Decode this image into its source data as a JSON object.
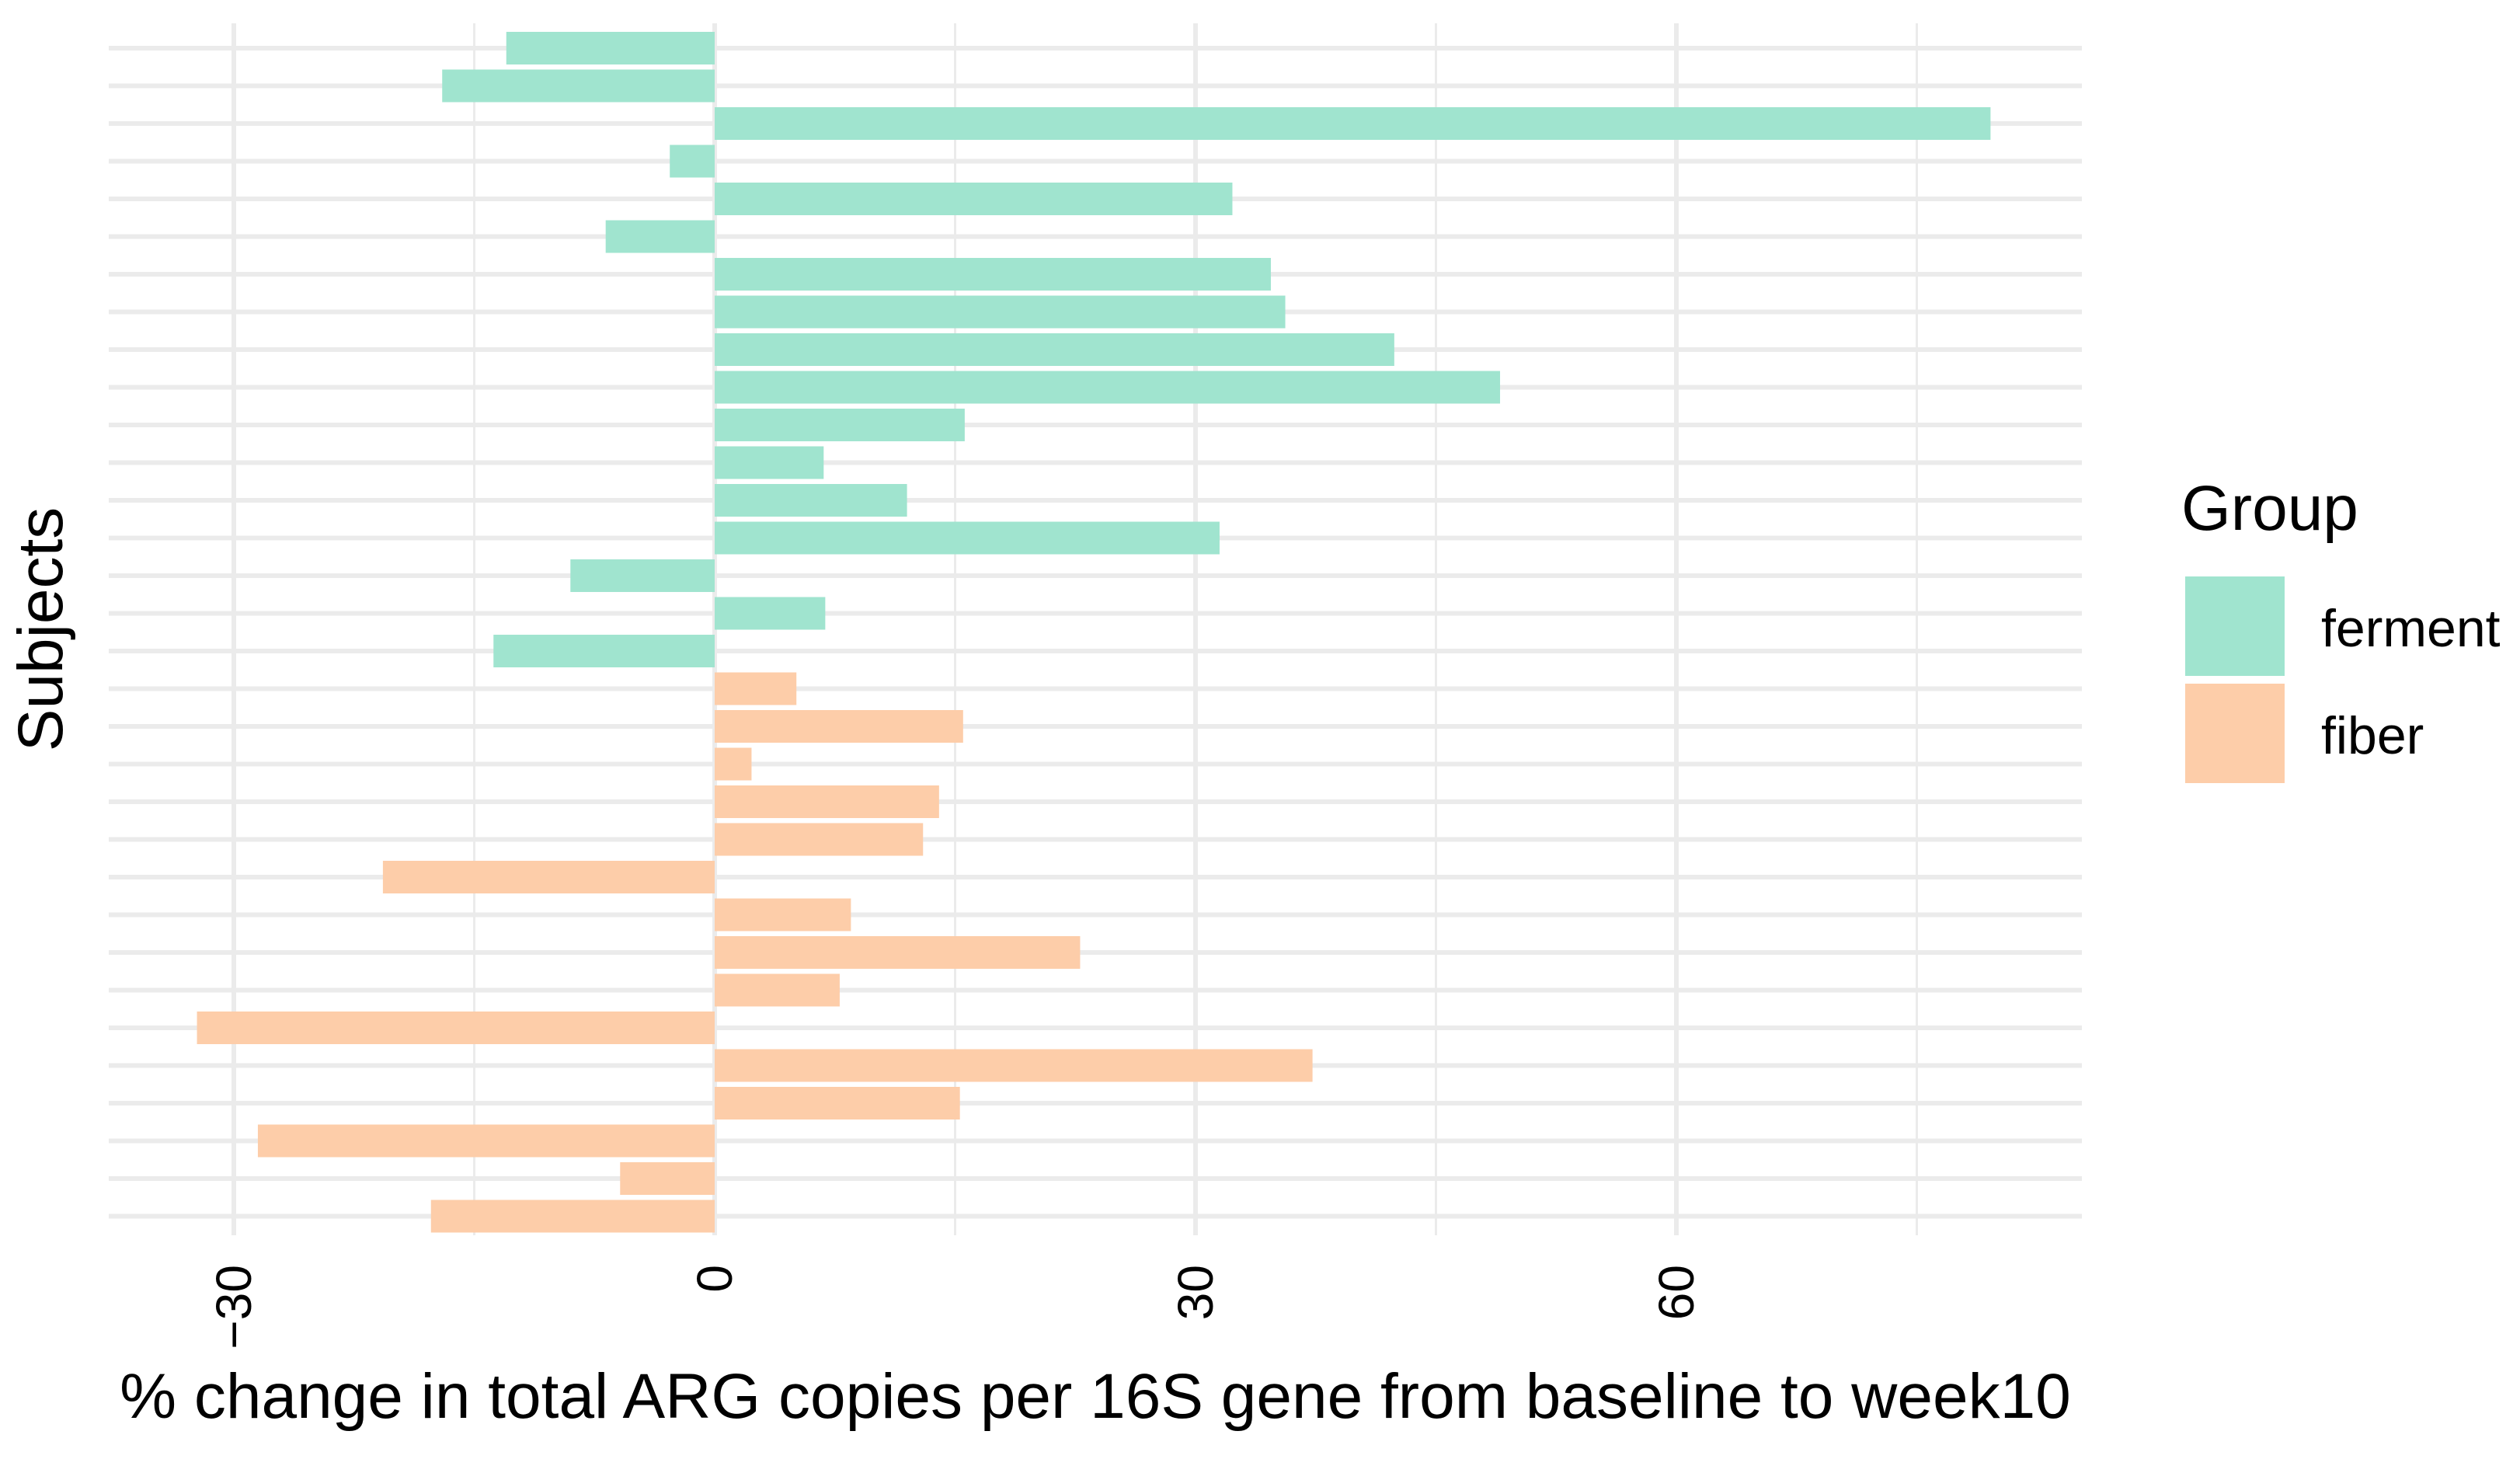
{
  "chart_data": {
    "type": "bar",
    "orientation": "horizontal",
    "title": "",
    "xlabel": "% change in total ARG copies per 16S gene from baseline to week10",
    "ylabel": "Subjects",
    "xlim": [
      -38,
      85
    ],
    "x_ticks": [
      -30,
      0,
      30,
      60
    ],
    "x_tick_labels": [
      "−30",
      "0",
      "30",
      "60"
    ],
    "grid": true,
    "legend": {
      "title": "Group",
      "position": "right",
      "entries": [
        {
          "label": "ferment",
          "color": "#a0e4cf"
        },
        {
          "label": "fiber",
          "color": "#fdcda9"
        }
      ]
    },
    "series": [
      {
        "name": "ferment",
        "color": "#a0e4cf",
        "values": [
          -13,
          -17,
          79.6,
          -2.8,
          32.3,
          -6.8,
          34.7,
          35.6,
          42.4,
          49,
          15.6,
          6.8,
          12,
          31.5,
          -9,
          6.9,
          -13.8
        ]
      },
      {
        "name": "fiber",
        "color": "#fdcda9",
        "values": [
          5.1,
          15.5,
          2.3,
          14,
          13,
          -20.7,
          8.5,
          22.8,
          7.8,
          -32.3,
          37.3,
          15.3,
          -28.5,
          -5.9,
          -17.7
        ]
      }
    ]
  }
}
